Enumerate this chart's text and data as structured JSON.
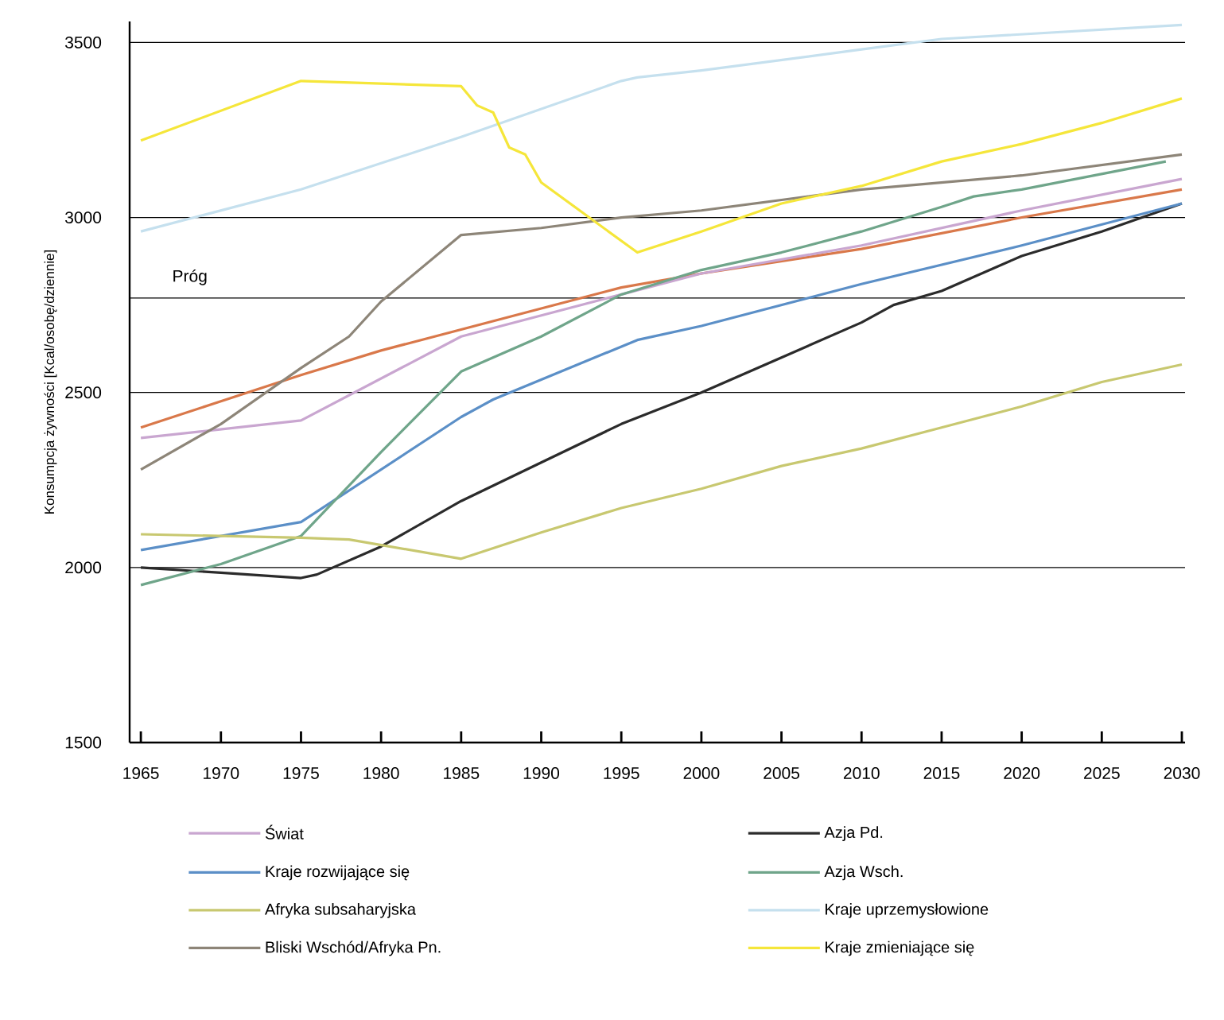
{
  "chart_data": {
    "type": "line",
    "ylabel": "Konsumpcja żywności [Kcal/osobę/dziennie]",
    "xlim": [
      1964.3,
      2030.2
    ],
    "ylim": [
      1500,
      3560
    ],
    "xticks": [
      1965,
      1970,
      1975,
      1980,
      1985,
      1990,
      1995,
      2000,
      2005,
      2010,
      2015,
      2020,
      2025,
      2030
    ],
    "yticks": [
      1500,
      2000,
      2500,
      3000,
      3500
    ],
    "grid": "y",
    "legend": "bottom",
    "ref_lines": [
      {
        "axis": "y",
        "value": 2770,
        "label": "Próg",
        "color": "#000000"
      }
    ],
    "series": [
      {
        "name": "Świat",
        "color": "#c9a6d0",
        "x": [
          1965,
          1975,
          1985,
          1995,
          2000,
          2010,
          2020,
          2030
        ],
        "values": [
          2370,
          2420,
          2660,
          2780,
          2840,
          2920,
          3020,
          3110
        ]
      },
      {
        "name": "Kraje rozwijające się",
        "color": "#5b8fc7",
        "x": [
          1965,
          1975,
          1985,
          1987,
          1996,
          2000,
          2010,
          2020,
          2030
        ],
        "values": [
          2050,
          2130,
          2430,
          2480,
          2650,
          2690,
          2810,
          2920,
          3040
        ]
      },
      {
        "name": "Afryka subsaharyjska",
        "color": "#c8c870",
        "x": [
          1965,
          1975,
          1978,
          1985,
          1990,
          1995,
          2000,
          2005,
          2010,
          2015,
          2020,
          2025,
          2030
        ],
        "values": [
          2095,
          2085,
          2080,
          2025,
          2100,
          2170,
          2225,
          2290,
          2340,
          2400,
          2460,
          2530,
          2580
        ]
      },
      {
        "name": "Bliski Wschód/Afryka Pn.",
        "color": "#8d8578",
        "x": [
          1965,
          1970,
          1975,
          1978,
          1980,
          1985,
          1990,
          1995,
          2000,
          2005,
          2010,
          2020,
          2030
        ],
        "values": [
          2280,
          2410,
          2570,
          2660,
          2760,
          2950,
          2970,
          3000,
          3020,
          3050,
          3080,
          3120,
          3180
        ]
      },
      {
        "name": "Azja Pd.",
        "color": "#2b2b2b",
        "x": [
          1965,
          1970,
          1975,
          1976,
          1980,
          1985,
          1990,
          1995,
          2000,
          2005,
          2010,
          2012,
          2015,
          2020,
          2025,
          2030
        ],
        "values": [
          2000,
          1985,
          1970,
          1980,
          2060,
          2190,
          2300,
          2410,
          2500,
          2600,
          2700,
          2750,
          2790,
          2890,
          2960,
          3040
        ]
      },
      {
        "name": "Azja Wsch.",
        "color": "#6fa58a",
        "x": [
          1965,
          1970,
          1975,
          1980,
          1985,
          1990,
          1995,
          2000,
          2005,
          2010,
          2015,
          2017,
          2020,
          2029
        ],
        "values": [
          1950,
          2010,
          2090,
          2330,
          2560,
          2660,
          2780,
          2850,
          2900,
          2960,
          3030,
          3060,
          3080,
          3160
        ]
      },
      {
        "name": "Kraje uprzemysłowione",
        "color": "#c5e0ee",
        "x": [
          1965,
          1975,
          1985,
          1995,
          1996,
          2000,
          2010,
          2015,
          2030
        ],
        "values": [
          2960,
          3080,
          3230,
          3390,
          3400,
          3420,
          3480,
          3510,
          3550
        ]
      },
      {
        "name": "Kraje zmieniające się",
        "color": "#f5e63a",
        "x": [
          1965,
          1975,
          1985,
          1986,
          1987,
          1988,
          1989,
          1990,
          1996,
          2000,
          2005,
          2010,
          2015,
          2020,
          2025,
          2030
        ],
        "values": [
          3220,
          3390,
          3375,
          3320,
          3300,
          3200,
          3180,
          3100,
          2900,
          2960,
          3040,
          3090,
          3160,
          3210,
          3270,
          3340
        ]
      },
      {
        "color": "#d9784a",
        "x": [
          1965,
          1975,
          1980,
          1990,
          1995,
          2000,
          2010,
          2020,
          2030
        ],
        "values": [
          2400,
          2550,
          2620,
          2740,
          2800,
          2840,
          2910,
          3000,
          3080
        ]
      }
    ]
  }
}
